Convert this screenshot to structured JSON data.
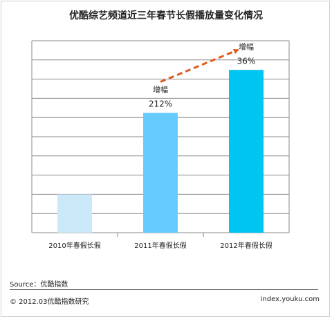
{
  "chart_data": {
    "type": "bar",
    "title": "优酷综艺频道近三年春节长假播放量变化情况",
    "categories": [
      "2010年春假长假",
      "2011年春假长假",
      "2012年春假长假"
    ],
    "values": [
      1,
      3.12,
      4.24
    ],
    "ylim": [
      0,
      5
    ],
    "grid": true,
    "colors": [
      "#cce9f9",
      "#66ccff",
      "#00c4f2"
    ],
    "annotations": [
      {
        "category": "2011年春假长假",
        "label": "增幅",
        "value_label": "212%"
      },
      {
        "category": "2012年春假长假",
        "label": "增幅",
        "value_label": "36%"
      }
    ],
    "trend_arrow": {
      "color": "#e05a20",
      "style": "dashed"
    }
  },
  "footer": {
    "source": "Source：优酷指数",
    "copyright": "© 2012.03优酷指数研究",
    "site": "index.youku.com"
  }
}
